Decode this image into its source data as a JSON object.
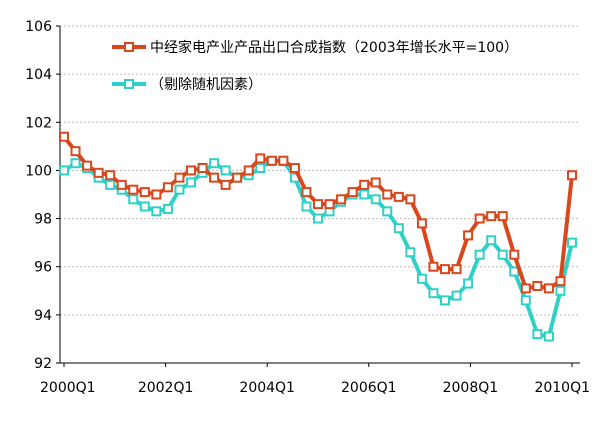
{
  "chart_data": {
    "type": "line",
    "legend": {
      "placement": "top-right",
      "entries": [
        {
          "label": "中经家电产业产品出口合成指数（2003年增长水平=100）"
        },
        {
          "label": "（剔除随机因素）"
        }
      ]
    },
    "grid": true,
    "ylim": [
      92,
      106
    ],
    "y_ticks": [
      "92",
      "94",
      "96",
      "98",
      "100",
      "102",
      "104",
      "106"
    ],
    "x_ticks": [
      "2000Q1",
      "2002Q1",
      "2004Q1",
      "2006Q1",
      "2008Q1",
      "2010Q1"
    ],
    "x_range": [
      "2000Q1",
      "2010Q1"
    ],
    "series": [
      {
        "color": "#d9481c",
        "values": [
          101.4,
          100.8,
          100.2,
          99.9,
          99.8,
          99.4,
          99.2,
          99.1,
          99.0,
          99.3,
          99.7,
          100.0,
          100.1,
          99.7,
          99.4,
          99.7,
          100.0,
          100.5,
          100.4,
          100.4,
          100.1,
          99.1,
          98.6,
          98.6,
          98.8,
          99.1,
          99.4,
          99.5,
          99.0,
          98.9,
          98.8,
          97.8,
          96.0,
          95.9,
          95.9,
          97.3,
          98.0,
          98.1,
          98.1,
          96.5,
          95.1,
          95.2,
          95.1,
          95.4,
          99.8
        ]
      },
      {
        "color": "#2fd0c8",
        "values": [
          100.0,
          100.3,
          100.1,
          99.7,
          99.4,
          99.2,
          98.8,
          98.5,
          98.3,
          98.4,
          99.2,
          99.5,
          99.9,
          100.3,
          100.0,
          99.7,
          99.8,
          100.1,
          100.4,
          100.4,
          99.7,
          98.5,
          98.0,
          98.3,
          98.7,
          99.0,
          99.0,
          98.8,
          98.3,
          97.6,
          96.6,
          95.5,
          94.9,
          94.6,
          94.8,
          95.3,
          96.5,
          97.1,
          96.5,
          95.8,
          94.6,
          93.2,
          93.1,
          95.0,
          97.0
        ]
      }
    ]
  }
}
